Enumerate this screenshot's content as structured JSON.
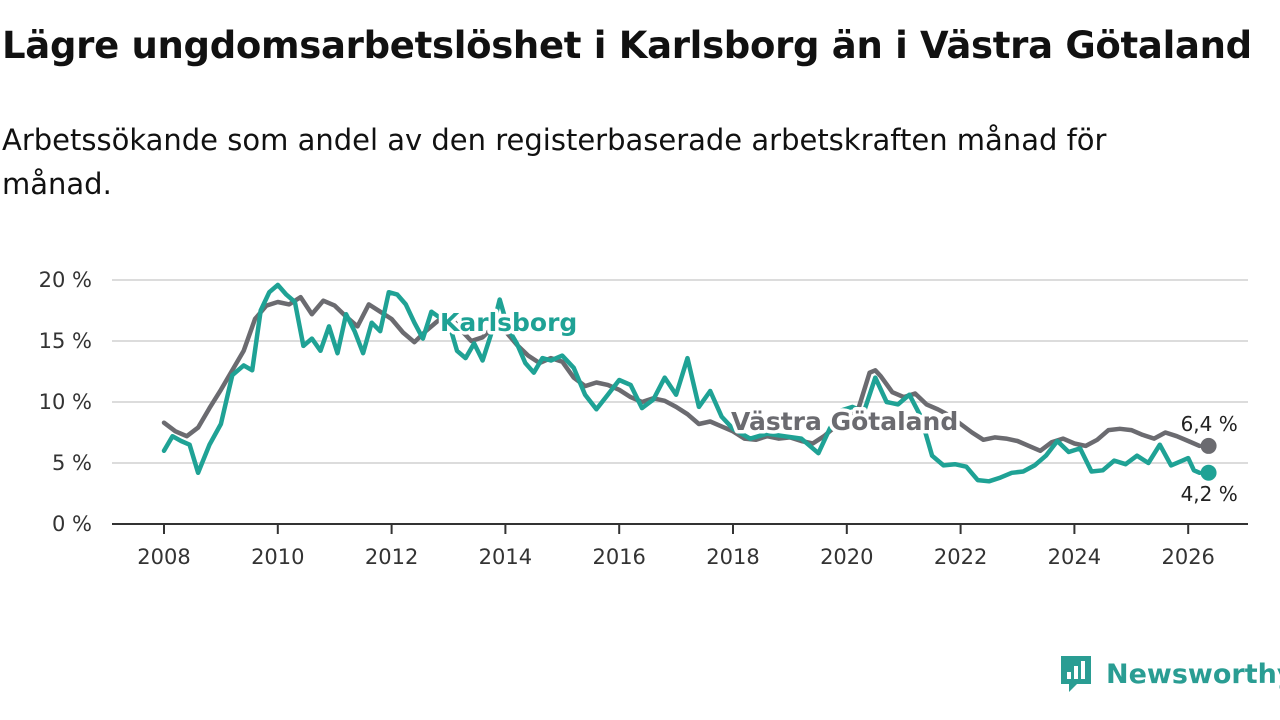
{
  "title": "Lägre ungdomsarbetslöshet i Karlsborg än i Västra Götaland",
  "subtitle": "Arbetssökande som andel av den registerbaserade arbetskraften månad för månad.",
  "brand": {
    "name": "Newsworthy",
    "icon": "newsworthy-logo-icon",
    "color": "#2a9d93"
  },
  "chart_data": {
    "type": "line",
    "title": "Lägre ungdomsarbetslöshet i Karlsborg än i Västra Götaland",
    "xlabel": "",
    "ylabel": "",
    "xlim": [
      2007.8,
      2027.0
    ],
    "ylim": [
      0,
      20
    ],
    "x_ticks": [
      2008,
      2010,
      2012,
      2014,
      2016,
      2018,
      2020,
      2022,
      2024,
      2026
    ],
    "x_tick_labels": [
      "2008",
      "2010",
      "2012",
      "2014",
      "2016",
      "2018",
      "2020",
      "2022",
      "2024",
      "2026"
    ],
    "y_ticks": [
      0,
      5,
      10,
      15,
      20
    ],
    "y_tick_labels": [
      "0 %",
      "5 %",
      "10 %",
      "15 %",
      "20 %"
    ],
    "grid": true,
    "series": [
      {
        "name": "Västra Götaland",
        "label": "Västra Götaland",
        "color": "#6b6b70",
        "end_label": "6,4 %",
        "points": [
          [
            2008.0,
            8.3
          ],
          [
            2008.2,
            7.6
          ],
          [
            2008.4,
            7.2
          ],
          [
            2008.6,
            7.9
          ],
          [
            2008.8,
            9.5
          ],
          [
            2009.0,
            11.0
          ],
          [
            2009.2,
            12.6
          ],
          [
            2009.4,
            14.2
          ],
          [
            2009.6,
            16.8
          ],
          [
            2009.8,
            17.9
          ],
          [
            2010.0,
            18.2
          ],
          [
            2010.2,
            18.0
          ],
          [
            2010.4,
            18.6
          ],
          [
            2010.6,
            17.2
          ],
          [
            2010.8,
            18.3
          ],
          [
            2011.0,
            17.9
          ],
          [
            2011.2,
            17.0
          ],
          [
            2011.4,
            16.2
          ],
          [
            2011.6,
            18.0
          ],
          [
            2011.8,
            17.4
          ],
          [
            2012.0,
            16.8
          ],
          [
            2012.2,
            15.7
          ],
          [
            2012.4,
            14.9
          ],
          [
            2012.6,
            15.8
          ],
          [
            2012.8,
            16.6
          ],
          [
            2013.0,
            17.2
          ],
          [
            2013.2,
            16.0
          ],
          [
            2013.4,
            15.0
          ],
          [
            2013.6,
            15.3
          ],
          [
            2013.8,
            16.2
          ],
          [
            2014.0,
            15.8
          ],
          [
            2014.2,
            14.7
          ],
          [
            2014.4,
            13.8
          ],
          [
            2014.6,
            13.2
          ],
          [
            2014.8,
            13.6
          ],
          [
            2015.0,
            13.3
          ],
          [
            2015.2,
            12.0
          ],
          [
            2015.4,
            11.3
          ],
          [
            2015.6,
            11.6
          ],
          [
            2015.8,
            11.4
          ],
          [
            2016.0,
            11.0
          ],
          [
            2016.2,
            10.4
          ],
          [
            2016.4,
            10.0
          ],
          [
            2016.6,
            10.3
          ],
          [
            2016.8,
            10.1
          ],
          [
            2017.0,
            9.6
          ],
          [
            2017.2,
            9.0
          ],
          [
            2017.4,
            8.2
          ],
          [
            2017.6,
            8.4
          ],
          [
            2017.8,
            8.0
          ],
          [
            2018.0,
            7.6
          ],
          [
            2018.2,
            7.0
          ],
          [
            2018.4,
            6.9
          ],
          [
            2018.6,
            7.2
          ],
          [
            2018.8,
            7.0
          ],
          [
            2019.0,
            7.1
          ],
          [
            2019.2,
            6.8
          ],
          [
            2019.4,
            6.6
          ],
          [
            2019.6,
            7.2
          ],
          [
            2019.8,
            8.0
          ],
          [
            2020.0,
            8.5
          ],
          [
            2020.2,
            9.4
          ],
          [
            2020.4,
            12.4
          ],
          [
            2020.5,
            12.6
          ],
          [
            2020.6,
            12.1
          ],
          [
            2020.8,
            10.8
          ],
          [
            2021.0,
            10.4
          ],
          [
            2021.2,
            10.7
          ],
          [
            2021.4,
            9.8
          ],
          [
            2021.6,
            9.4
          ],
          [
            2021.8,
            8.9
          ],
          [
            2022.0,
            8.2
          ],
          [
            2022.2,
            7.5
          ],
          [
            2022.4,
            6.9
          ],
          [
            2022.6,
            7.1
          ],
          [
            2022.8,
            7.0
          ],
          [
            2023.0,
            6.8
          ],
          [
            2023.2,
            6.4
          ],
          [
            2023.4,
            6.0
          ],
          [
            2023.6,
            6.7
          ],
          [
            2023.8,
            7.0
          ],
          [
            2024.0,
            6.6
          ],
          [
            2024.2,
            6.4
          ],
          [
            2024.4,
            6.9
          ],
          [
            2024.6,
            7.7
          ],
          [
            2024.8,
            7.8
          ],
          [
            2025.0,
            7.7
          ],
          [
            2025.2,
            7.3
          ],
          [
            2025.4,
            7.0
          ],
          [
            2025.6,
            7.5
          ],
          [
            2025.8,
            7.2
          ],
          [
            2026.0,
            6.8
          ],
          [
            2026.2,
            6.4
          ]
        ]
      },
      {
        "name": "Karlsborg",
        "label": "Karlsborg",
        "color": "#1fa295",
        "end_label": "4,2 %",
        "points": [
          [
            2008.0,
            6.0
          ],
          [
            2008.15,
            7.2
          ],
          [
            2008.3,
            6.8
          ],
          [
            2008.45,
            6.5
          ],
          [
            2008.6,
            4.2
          ],
          [
            2008.8,
            6.5
          ],
          [
            2009.0,
            8.2
          ],
          [
            2009.2,
            12.2
          ],
          [
            2009.4,
            13.0
          ],
          [
            2009.55,
            12.6
          ],
          [
            2009.7,
            17.5
          ],
          [
            2009.85,
            19.0
          ],
          [
            2010.0,
            19.6
          ],
          [
            2010.15,
            18.8
          ],
          [
            2010.3,
            18.2
          ],
          [
            2010.45,
            14.6
          ],
          [
            2010.6,
            15.2
          ],
          [
            2010.75,
            14.2
          ],
          [
            2010.9,
            16.2
          ],
          [
            2011.05,
            14.0
          ],
          [
            2011.2,
            17.2
          ],
          [
            2011.35,
            15.8
          ],
          [
            2011.5,
            14.0
          ],
          [
            2011.65,
            16.5
          ],
          [
            2011.8,
            15.8
          ],
          [
            2011.95,
            19.0
          ],
          [
            2012.1,
            18.8
          ],
          [
            2012.25,
            18.0
          ],
          [
            2012.4,
            16.5
          ],
          [
            2012.55,
            15.2
          ],
          [
            2012.7,
            17.4
          ],
          [
            2012.85,
            16.9
          ],
          [
            2013.0,
            16.6
          ],
          [
            2013.15,
            14.2
          ],
          [
            2013.3,
            13.6
          ],
          [
            2013.45,
            14.8
          ],
          [
            2013.6,
            13.4
          ],
          [
            2013.75,
            15.6
          ],
          [
            2013.9,
            18.4
          ],
          [
            2014.05,
            16.0
          ],
          [
            2014.2,
            14.8
          ],
          [
            2014.35,
            13.2
          ],
          [
            2014.5,
            12.4
          ],
          [
            2014.65,
            13.6
          ],
          [
            2014.8,
            13.4
          ],
          [
            2015.0,
            13.8
          ],
          [
            2015.2,
            12.8
          ],
          [
            2015.4,
            10.6
          ],
          [
            2015.6,
            9.4
          ],
          [
            2015.8,
            10.6
          ],
          [
            2016.0,
            11.8
          ],
          [
            2016.2,
            11.4
          ],
          [
            2016.4,
            9.5
          ],
          [
            2016.6,
            10.2
          ],
          [
            2016.8,
            12.0
          ],
          [
            2017.0,
            10.6
          ],
          [
            2017.2,
            13.6
          ],
          [
            2017.4,
            9.6
          ],
          [
            2017.6,
            10.9
          ],
          [
            2017.8,
            8.8
          ],
          [
            2018.0,
            7.8
          ],
          [
            2018.3,
            7.0
          ],
          [
            2018.6,
            7.4
          ],
          [
            2018.9,
            7.2
          ],
          [
            2019.2,
            7.0
          ],
          [
            2019.5,
            5.8
          ],
          [
            2019.7,
            7.8
          ],
          [
            2019.9,
            9.3
          ],
          [
            2020.1,
            9.6
          ],
          [
            2020.3,
            9.2
          ],
          [
            2020.5,
            12.0
          ],
          [
            2020.7,
            10.0
          ],
          [
            2020.9,
            9.8
          ],
          [
            2021.1,
            10.6
          ],
          [
            2021.3,
            8.8
          ],
          [
            2021.5,
            5.6
          ],
          [
            2021.7,
            4.8
          ],
          [
            2021.9,
            4.9
          ],
          [
            2022.1,
            4.7
          ],
          [
            2022.3,
            3.6
          ],
          [
            2022.5,
            3.5
          ],
          [
            2022.7,
            3.8
          ],
          [
            2022.9,
            4.2
          ],
          [
            2023.1,
            4.3
          ],
          [
            2023.3,
            4.8
          ],
          [
            2023.5,
            5.6
          ],
          [
            2023.7,
            6.8
          ],
          [
            2023.9,
            5.9
          ],
          [
            2024.1,
            6.2
          ],
          [
            2024.3,
            4.3
          ],
          [
            2024.5,
            4.4
          ],
          [
            2024.7,
            5.2
          ],
          [
            2024.9,
            4.9
          ],
          [
            2025.1,
            5.6
          ],
          [
            2025.3,
            5.0
          ],
          [
            2025.5,
            6.5
          ],
          [
            2025.7,
            4.8
          ],
          [
            2025.9,
            5.2
          ],
          [
            2026.0,
            5.4
          ],
          [
            2026.1,
            4.4
          ],
          [
            2026.2,
            4.2
          ]
        ]
      }
    ]
  }
}
